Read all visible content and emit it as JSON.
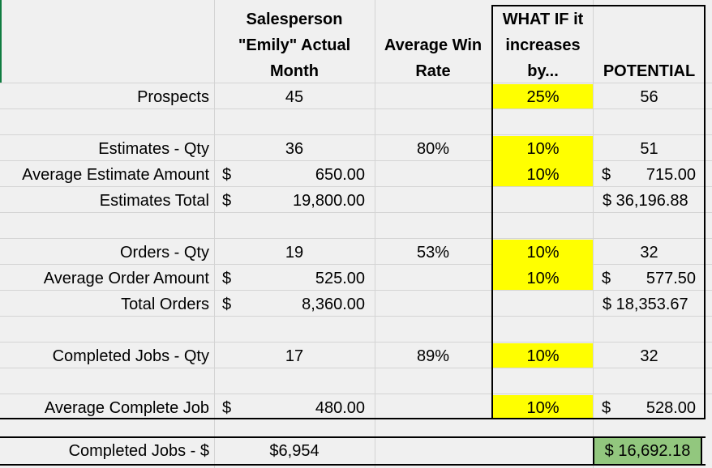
{
  "headers": {
    "actual": [
      "Salesperson",
      "\"Emily\" Actual",
      "Month"
    ],
    "winrate": [
      "Average Win",
      "Rate"
    ],
    "whatif": [
      "WHAT IF it",
      "increases",
      "by..."
    ],
    "potential": "POTENTIAL"
  },
  "rows": [
    {
      "label": "Prospects",
      "actual_dollar": "",
      "actual": "45",
      "winrate": "",
      "whatif": "25%",
      "pot_dollar": "",
      "potential": "56"
    },
    {
      "label": "Estimates - Qty",
      "actual_dollar": "",
      "actual": "36",
      "winrate": "80%",
      "whatif": "10%",
      "pot_dollar": "",
      "potential": "51"
    },
    {
      "label": "Average Estimate Amount",
      "actual_dollar": "$",
      "actual": "650.00",
      "winrate": "",
      "whatif": "10%",
      "pot_dollar": "$",
      "potential": "715.00"
    },
    {
      "label": "Estimates Total",
      "actual_dollar": "$",
      "actual": "19,800.00",
      "winrate": "",
      "whatif": "",
      "pot_dollar": "",
      "potential": "$ 36,196.88"
    },
    {
      "label": "Orders - Qty",
      "actual_dollar": "",
      "actual": "19",
      "winrate": "53%",
      "whatif": "10%",
      "pot_dollar": "",
      "potential": "32"
    },
    {
      "label": "Average Order Amount",
      "actual_dollar": "$",
      "actual": "525.00",
      "winrate": "",
      "whatif": "10%",
      "pot_dollar": "$",
      "potential": "577.50"
    },
    {
      "label": "Total Orders",
      "actual_dollar": "$",
      "actual": "8,360.00",
      "winrate": "",
      "whatif": "",
      "pot_dollar": "",
      "potential": "$ 18,353.67"
    },
    {
      "label": "Completed Jobs - Qty",
      "actual_dollar": "",
      "actual": "17",
      "winrate": "89%",
      "whatif": "10%",
      "pot_dollar": "",
      "potential": "32"
    },
    {
      "label": "Average Complete Job",
      "actual_dollar": "$",
      "actual": "480.00",
      "winrate": "",
      "whatif": "10%",
      "pot_dollar": "$",
      "potential": "528.00"
    }
  ],
  "total": {
    "label": "Completed Jobs - $",
    "actual": "$6,954",
    "potential": "$ 16,692.18"
  },
  "colors": {
    "highlight": "#ffff00",
    "result": "#92c77e",
    "grid": "#d4d4d4",
    "background": "#f0f0f0"
  }
}
